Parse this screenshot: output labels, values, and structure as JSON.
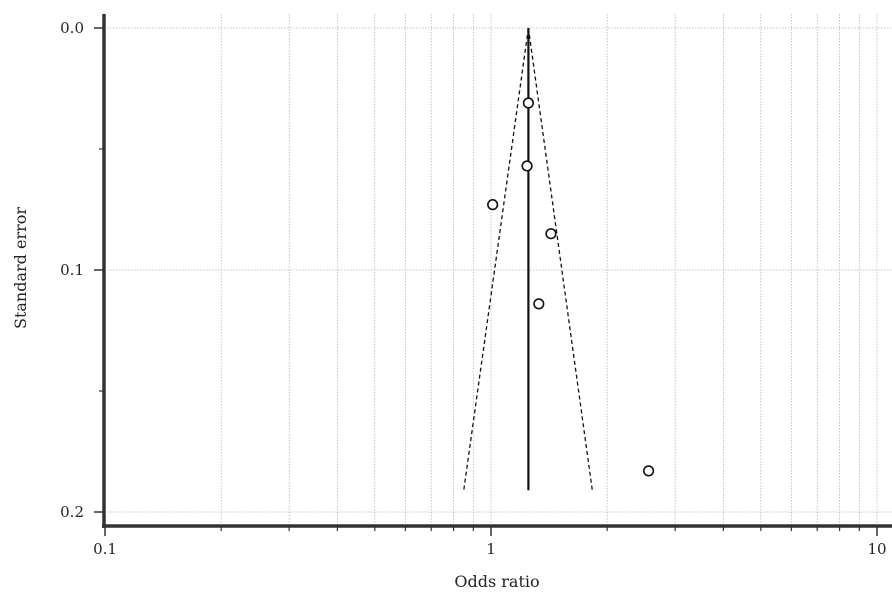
{
  "chart_data": {
    "type": "scatter",
    "subtype": "funnel plot",
    "title": "",
    "xlabel": "Odds ratio",
    "ylabel": "Standard error",
    "x_scale": "log",
    "y_inverted": true,
    "xlim": [
      0.1,
      10
    ],
    "ylim": [
      0.2,
      0.0
    ],
    "grid": true,
    "x_ticks": [
      0.1,
      1,
      10
    ],
    "x_tick_labels": [
      "0.1",
      "1",
      "10"
    ],
    "y_ticks": [
      0.0,
      0.1,
      0.2
    ],
    "y_tick_labels": [
      "0.0",
      "0.1",
      "0.2"
    ],
    "points": [
      {
        "x": 1.25,
        "y": 0.031
      },
      {
        "x": 1.24,
        "y": 0.057
      },
      {
        "x": 1.01,
        "y": 0.073
      },
      {
        "x": 1.43,
        "y": 0.085
      },
      {
        "x": 1.33,
        "y": 0.114
      },
      {
        "x": 2.56,
        "y": 0.183
      }
    ],
    "pooled_estimate": {
      "x": 1.25,
      "y_range": [
        0.0,
        0.191
      ]
    },
    "funnel_limits": {
      "left": [
        [
          1.25,
          0.0
        ],
        [
          0.85,
          0.191
        ]
      ],
      "right": [
        [
          1.25,
          0.0
        ],
        [
          1.83,
          0.191
        ]
      ]
    }
  }
}
